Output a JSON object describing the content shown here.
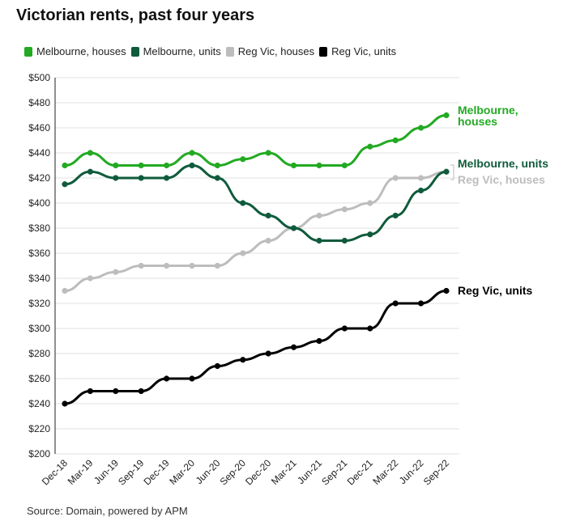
{
  "title": "Victorian rents, past four years",
  "legend": [
    {
      "label": "Melbourne, houses",
      "color": "#22aa22"
    },
    {
      "label": "Melbourne, units",
      "color": "#0f5b3c"
    },
    {
      "label": "Reg Vic, houses",
      "color": "#bdbdbd"
    },
    {
      "label": "Reg Vic, units",
      "color": "#000000"
    }
  ],
  "source": "Source: Domain, powered by APM",
  "chart_data": {
    "type": "line",
    "title": "Victorian rents, past four years",
    "x": [
      "Dec-18",
      "Mar-19",
      "Jun-19",
      "Sep-19",
      "Dec-19",
      "Mar-20",
      "Jun-20",
      "Sep-20",
      "Dec-20",
      "Mar-21",
      "Jun-21",
      "Sep-21",
      "Dec-21",
      "Mar-22",
      "Jun-22",
      "Sep-22"
    ],
    "y_ticks": [
      "$200",
      "$220",
      "$240",
      "$260",
      "$280",
      "$300",
      "$320",
      "$340",
      "$360",
      "$380",
      "$400",
      "$420",
      "$440",
      "$460",
      "$480",
      "$500"
    ],
    "ylim": [
      200,
      500
    ],
    "grid": true,
    "legend_position": "top",
    "series": [
      {
        "name": "Melbourne, houses",
        "end_label": "Melbourne, houses",
        "color": "#22aa22",
        "values": [
          430,
          440,
          430,
          430,
          430,
          440,
          430,
          435,
          440,
          430,
          430,
          430,
          445,
          450,
          460,
          470
        ]
      },
      {
        "name": "Melbourne, units",
        "end_label": "Melbourne, units",
        "color": "#0f5b3c",
        "values": [
          415,
          425,
          420,
          420,
          420,
          430,
          420,
          400,
          390,
          380,
          370,
          370,
          375,
          390,
          410,
          425
        ]
      },
      {
        "name": "Reg Vic, houses",
        "end_label": "Reg Vic, houses",
        "color": "#bdbdbd",
        "values": [
          330,
          340,
          345,
          350,
          350,
          350,
          350,
          360,
          370,
          380,
          390,
          395,
          400,
          420,
          420,
          425
        ]
      },
      {
        "name": "Reg Vic, units",
        "end_label": "Reg Vic, units",
        "color": "#000000",
        "values": [
          240,
          250,
          250,
          250,
          260,
          260,
          270,
          275,
          280,
          285,
          290,
          300,
          300,
          320,
          320,
          330
        ]
      }
    ]
  }
}
